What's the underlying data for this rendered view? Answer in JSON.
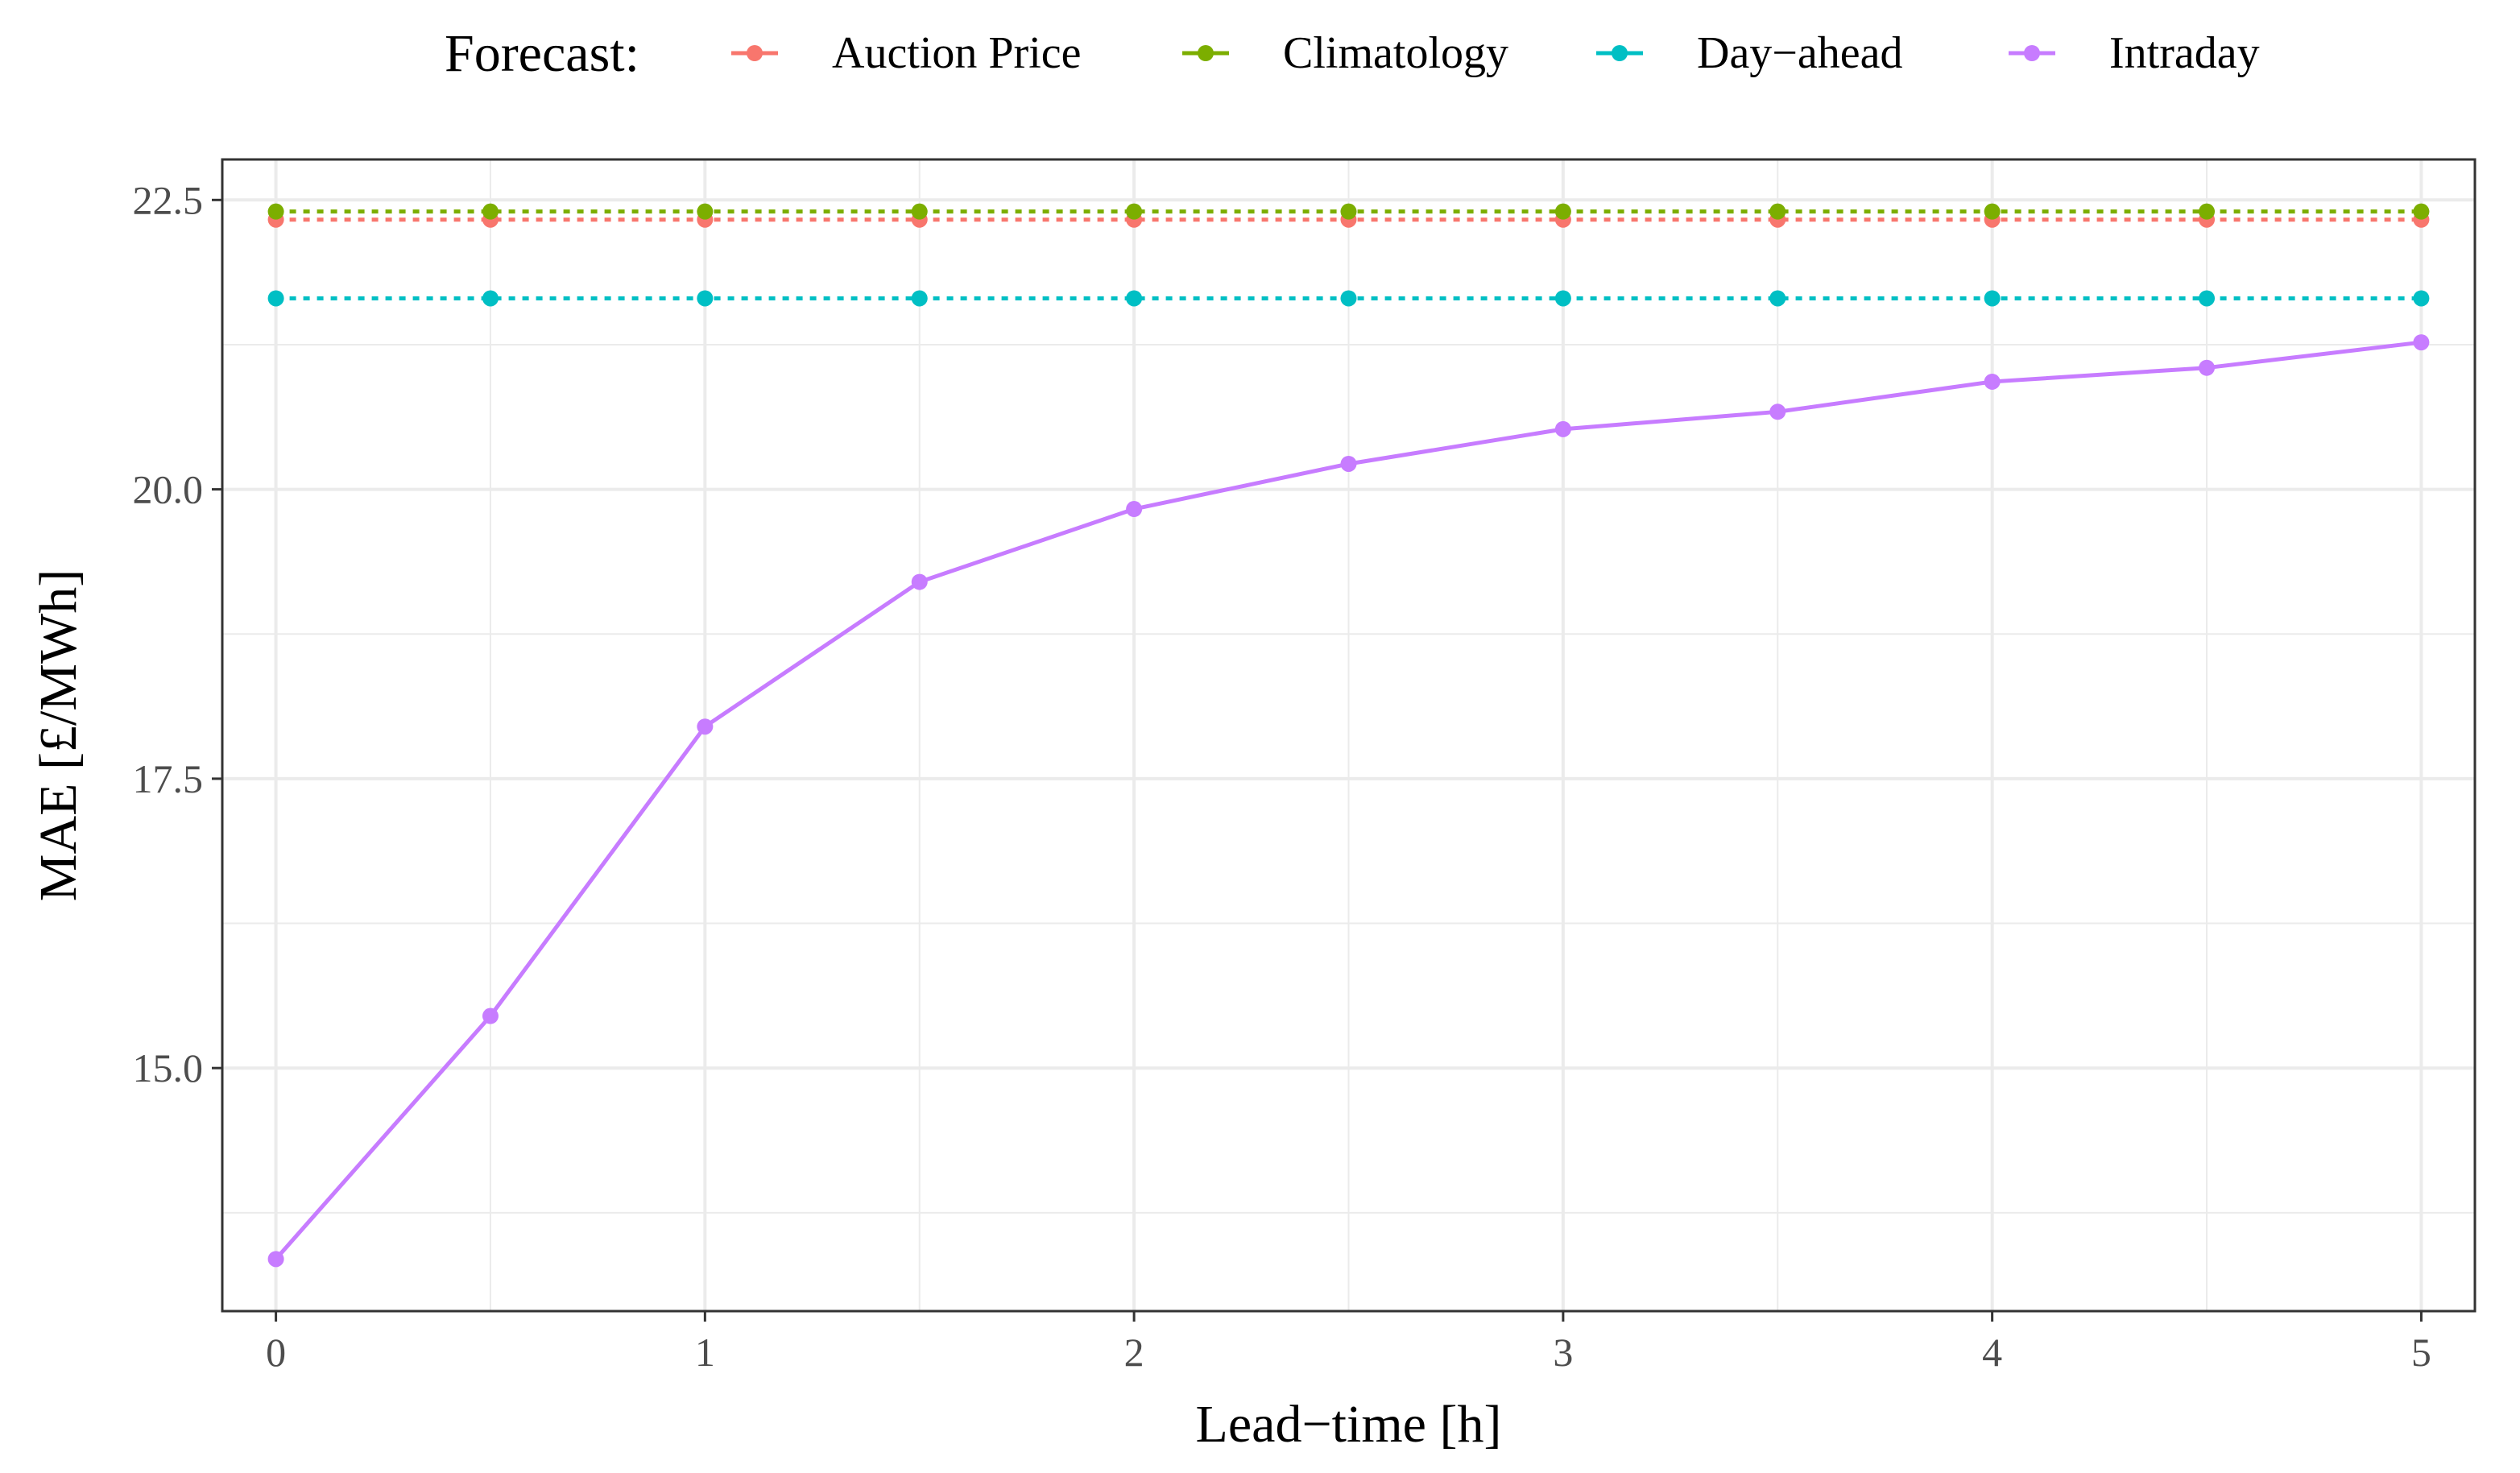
{
  "chart_data": {
    "type": "line",
    "title": "",
    "xlabel": "Lead−time [h]",
    "ylabel": "MAE [£/MWh]",
    "x": [
      0,
      0.5,
      1,
      1.5,
      2,
      2.5,
      3,
      3.5,
      4,
      4.5,
      5
    ],
    "xlim": [
      -0.125,
      5.125
    ],
    "ylim": [
      12.9,
      22.85
    ],
    "x_ticks": [
      0,
      1,
      2,
      3,
      4,
      5
    ],
    "x_tick_labels": [
      "0",
      "1",
      "2",
      "3",
      "4",
      "5"
    ],
    "y_ticks": [
      15.0,
      17.5,
      20.0,
      22.5
    ],
    "y_tick_labels": [
      "15.0",
      "17.5",
      "20.0",
      "22.5"
    ],
    "grid": true,
    "legend": {
      "title": "Forecast:",
      "position": "top",
      "entries": [
        "Auction Price",
        "Climatology",
        "Day−ahead",
        "Intraday"
      ]
    },
    "series": [
      {
        "name": "Auction Price",
        "color": "#F8766D",
        "dashed": true,
        "values": [
          22.33,
          22.33,
          22.33,
          22.33,
          22.33,
          22.33,
          22.33,
          22.33,
          22.33,
          22.33,
          22.33
        ]
      },
      {
        "name": "Climatology",
        "color": "#7CAE00",
        "dashed": true,
        "values": [
          22.4,
          22.4,
          22.4,
          22.4,
          22.4,
          22.4,
          22.4,
          22.4,
          22.4,
          22.4,
          22.4
        ]
      },
      {
        "name": "Day−ahead",
        "color": "#00BFC4",
        "dashed": true,
        "values": [
          21.65,
          21.65,
          21.65,
          21.65,
          21.65,
          21.65,
          21.65,
          21.65,
          21.65,
          21.65,
          21.65
        ]
      },
      {
        "name": "Intraday",
        "color": "#C77CFF",
        "dashed": false,
        "values": [
          13.35,
          15.45,
          17.95,
          19.2,
          19.83,
          20.22,
          20.52,
          20.67,
          20.93,
          21.05,
          21.27
        ]
      }
    ]
  }
}
